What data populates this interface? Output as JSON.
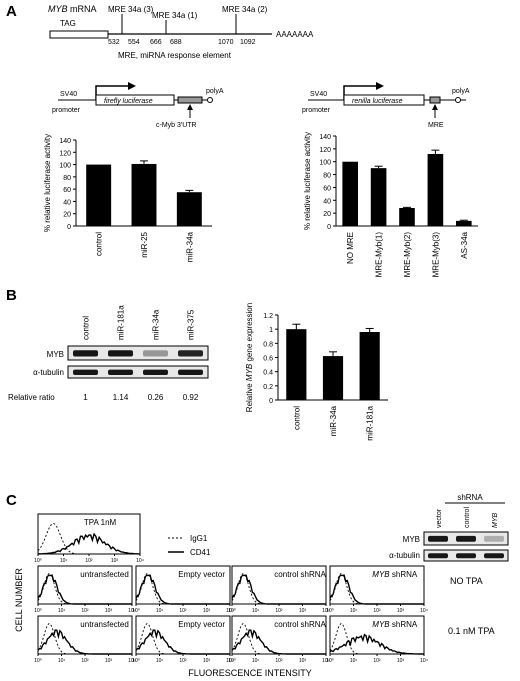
{
  "panel_labels": {
    "a": "A",
    "b": "B",
    "c": "C"
  },
  "panel_a": {
    "mrna_label_gene": "MYB",
    "mrna_label_rest": "mRNA",
    "tag": "TAG",
    "polyA_tail": "AAAAAAA",
    "mre_sites": [
      {
        "label": "MRE 34a (3)",
        "start": "532",
        "end": "554"
      },
      {
        "label": "MRE 34a (1)",
        "start": "666",
        "end": "688"
      },
      {
        "label": "MRE 34a (2)",
        "start": "1070",
        "end": "1092"
      }
    ],
    "mre_legend": "MRE, miRNA response element",
    "construct_left": {
      "promoter": "SV40",
      "promoter2": "promoter",
      "gene": "firefly luciferase",
      "utr": "c-Myb 3'UTR",
      "polyA": "polyA"
    },
    "construct_right": {
      "promoter": "SV40",
      "promoter2": "promoter",
      "gene": "renilla luciferase",
      "mre": "MRE",
      "polyA": "polyA"
    }
  },
  "panel_b": {
    "blot_columns": [
      "control",
      "miR-181a",
      "miR-34a",
      "miR-375"
    ],
    "blot_rows": [
      "MYB",
      "α-tubulin"
    ],
    "ratio_label": "Relative ratio",
    "ratios": [
      "1",
      "1.14",
      "0.26",
      "0.92"
    ]
  },
  "panel_c": {
    "shrna_header": "shRNA",
    "blot_columns": [
      "vector",
      "control",
      "MYB"
    ],
    "blot_rows": [
      "MYB",
      "α-tubulin"
    ],
    "legend": [
      {
        "name": "IgG1",
        "style": "dashed"
      },
      {
        "name": "CD41",
        "style": "solid"
      }
    ],
    "top_histogram_label": "TPA 1nM",
    "row_labels": [
      "NO TPA",
      "0.1 nM TPA"
    ],
    "histogram_labels": [
      "untransfected",
      "Empty vector",
      "control shRNA",
      "MYB shRNA"
    ],
    "y_axis": "CELL NUMBER",
    "x_axis": "FLUORESCENCE INTENSITY",
    "tick_labels": [
      "10⁰",
      "10¹",
      "10²",
      "10³",
      "10⁴"
    ]
  },
  "chart_data": [
    {
      "type": "bar",
      "id": "a-left",
      "ylabel": "% relative luciferase activity",
      "ylim": [
        0,
        140
      ],
      "yticks": [
        0,
        20,
        40,
        60,
        80,
        100,
        120,
        140
      ],
      "categories": [
        "control",
        "miR-25",
        "miR-34a"
      ],
      "values": [
        100,
        101,
        55
      ],
      "errors": [
        0,
        5,
        3
      ]
    },
    {
      "type": "bar",
      "id": "a-right",
      "ylabel": "% relative luciferase activity",
      "ylim": [
        0,
        140
      ],
      "yticks": [
        0,
        20,
        40,
        60,
        80,
        100,
        120,
        140
      ],
      "categories": [
        "NO MRE",
        "MRE-Myb(1)",
        "MRE-Myb(2)",
        "MRE-Myb(3)",
        "AS-34a"
      ],
      "values": [
        100,
        90,
        28,
        112,
        8
      ],
      "errors": [
        0,
        3,
        1,
        6,
        1
      ]
    },
    {
      "type": "bar",
      "id": "b",
      "ylabel": "Relative MYB gene expression",
      "ylim": [
        0,
        1.2
      ],
      "yticks": [
        "0",
        "0.2",
        "0.4",
        "0.6",
        "0.8",
        "1",
        "1.2"
      ],
      "categories": [
        "control",
        "miR-34a",
        "miR-181a"
      ],
      "values": [
        1.0,
        0.62,
        0.96
      ],
      "errors": [
        0.07,
        0.06,
        0.05
      ]
    }
  ]
}
